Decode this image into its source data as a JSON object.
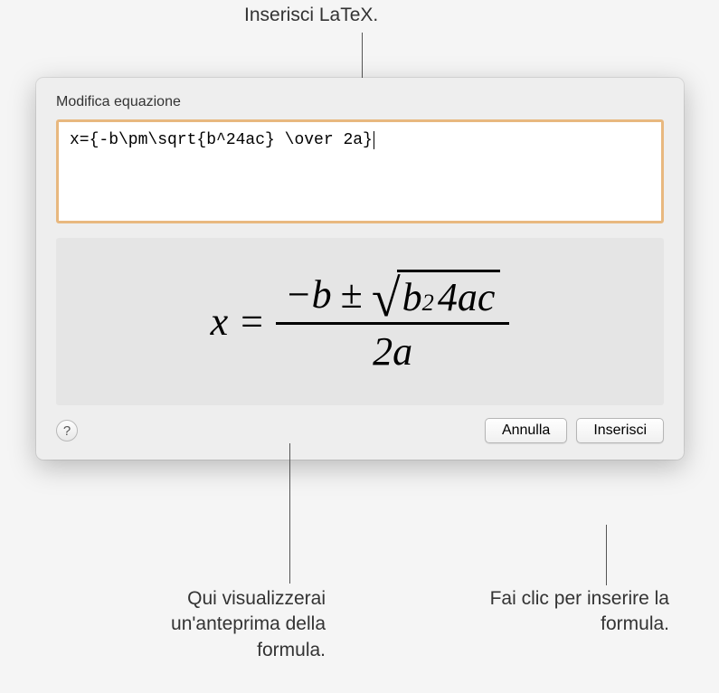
{
  "callouts": {
    "top": "Inserisci LaTeX.",
    "preview": "Qui visualizzerai un'anteprima della formula.",
    "insert": "Fai clic per inserire la formula."
  },
  "dialog": {
    "title": "Modifica equazione",
    "input_value": "x={-b\\pm\\sqrt{b^24ac} \\over 2a}",
    "help_label": "?",
    "cancel_label": "Annulla",
    "insert_label": "Inserisci"
  },
  "formula": {
    "lhs": "x",
    "eq": "=",
    "minus_b": "−b",
    "pm": "±",
    "radical": "√",
    "b": "b",
    "exp": "2",
    "four_ac": "4ac",
    "denominator": "2a"
  },
  "colors": {
    "dialog_bg": "#eeeeee",
    "input_border": "#e8b87f",
    "preview_bg": "#e5e5e5"
  }
}
